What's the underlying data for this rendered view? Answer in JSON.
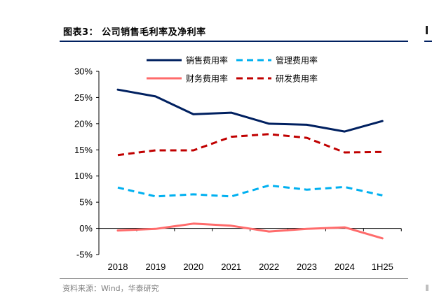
{
  "header": {
    "title": "图表3：  公司销售毛利率及净利率"
  },
  "footer": {
    "source": "资料来源：Wind，华泰研究"
  },
  "chart_data": {
    "type": "line",
    "title": "",
    "xlabel": "",
    "ylabel": "",
    "categories": [
      "2018",
      "2019",
      "2020",
      "2021",
      "2022",
      "2023",
      "2024",
      "1H25"
    ],
    "ylim": [
      -5,
      30
    ],
    "yticks": [
      -5,
      0,
      5,
      10,
      15,
      20,
      25,
      30
    ],
    "ytick_labels": [
      "-5%",
      "0%",
      "5%",
      "10%",
      "15%",
      "20%",
      "25%",
      "30%"
    ],
    "grid": false,
    "legend_position": "top",
    "series": [
      {
        "name": "销售费用率",
        "color": "#002060",
        "dash": "solid",
        "values": [
          26.5,
          25.2,
          21.8,
          22.1,
          20.0,
          19.8,
          18.5,
          20.5
        ]
      },
      {
        "name": "管理费用率",
        "color": "#00b0f0",
        "dash": "dashed",
        "values": [
          7.8,
          6.1,
          6.5,
          6.1,
          8.2,
          7.4,
          7.9,
          6.3
        ]
      },
      {
        "name": "财务费用率",
        "color": "#ff6b6b",
        "dash": "solid",
        "values": [
          -0.4,
          -0.1,
          0.9,
          0.5,
          -0.6,
          -0.1,
          0.2,
          -1.9
        ]
      },
      {
        "name": "研发费用率",
        "color": "#c00000",
        "dash": "dashed",
        "values": [
          14.0,
          14.9,
          14.9,
          17.5,
          18.0,
          17.3,
          14.5,
          14.6
        ]
      }
    ]
  }
}
